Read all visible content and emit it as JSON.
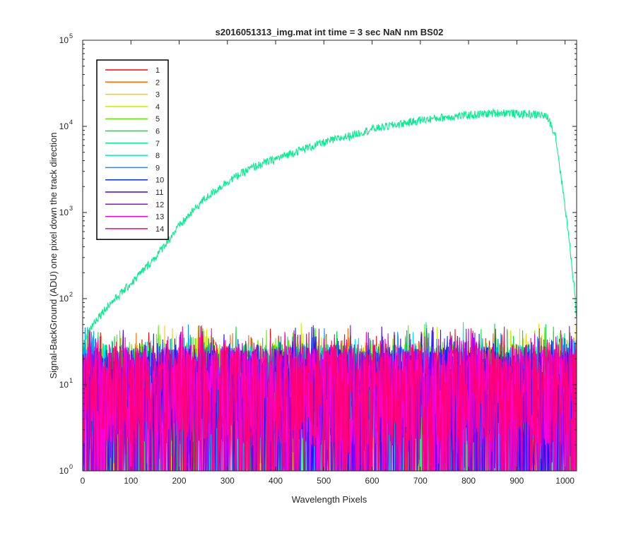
{
  "chart_data": {
    "type": "line",
    "title": "s2016051313_img.mat int time = 3 sec  NaN nm BS02",
    "xlabel": "Wavelength Pixels",
    "ylabel": "Signal-BackGround (ADU) one pixel down the track direction",
    "xlim": [
      0,
      1024
    ],
    "ylim": [
      1,
      100000
    ],
    "yscale": "log",
    "grid": false,
    "legend_position": "top-left",
    "x_ticks": [
      "0",
      "100",
      "200",
      "300",
      "400",
      "500",
      "600",
      "700",
      "800",
      "900",
      "1000"
    ],
    "x_tick_values": [
      0,
      100,
      200,
      300,
      400,
      500,
      600,
      700,
      800,
      900,
      1000
    ],
    "y_ticks": [
      {
        "base": "10",
        "exp": "0",
        "value": 1
      },
      {
        "base": "10",
        "exp": "1",
        "value": 10
      },
      {
        "base": "10",
        "exp": "2",
        "value": 100
      },
      {
        "base": "10",
        "exp": "3",
        "value": 1000
      },
      {
        "base": "10",
        "exp": "4",
        "value": 10000
      },
      {
        "base": "10",
        "exp": "5",
        "value": 100000
      }
    ],
    "series": [
      {
        "name": "1",
        "color": "#ff0000",
        "noise_level": 12
      },
      {
        "name": "2",
        "color": "#ff6a00",
        "noise_level": 12
      },
      {
        "name": "3",
        "color": "#ffc800",
        "noise_level": 13
      },
      {
        "name": "4",
        "color": "#c8f000",
        "noise_level": 14
      },
      {
        "name": "5",
        "color": "#60f000",
        "noise_level": 15
      },
      {
        "name": "6",
        "color": "#00e040",
        "noise_level": 14
      },
      {
        "name": "7",
        "color": "#00f090",
        "profile": {
          "x": [
            0,
            10,
            25,
            50,
            100,
            150,
            200,
            250,
            300,
            350,
            400,
            450,
            500,
            550,
            600,
            650,
            700,
            750,
            800,
            850,
            880,
            900,
            950,
            965,
            980,
            1000,
            1010,
            1020,
            1024
          ],
          "y": [
            25,
            40,
            55,
            80,
            150,
            300,
            700,
            1400,
            2300,
            3300,
            4200,
            5300,
            6500,
            7700,
            9300,
            10500,
            11800,
            12800,
            13500,
            14300,
            14500,
            14000,
            13700,
            12500,
            8000,
            1200,
            400,
            120,
            60
          ]
        }
      },
      {
        "name": "8",
        "color": "#00e8e8",
        "noise_level": 14
      },
      {
        "name": "9",
        "color": "#0096ff",
        "noise_level": 13
      },
      {
        "name": "10",
        "color": "#0032e0",
        "noise_level": 13
      },
      {
        "name": "11",
        "color": "#4000ff",
        "noise_level": 12
      },
      {
        "name": "12",
        "color": "#a000f0",
        "noise_level": 12
      },
      {
        "name": "13",
        "color": "#ff00dc",
        "noise_level": 13
      },
      {
        "name": "14",
        "color": "#ff0078",
        "noise_level": 14
      }
    ]
  }
}
